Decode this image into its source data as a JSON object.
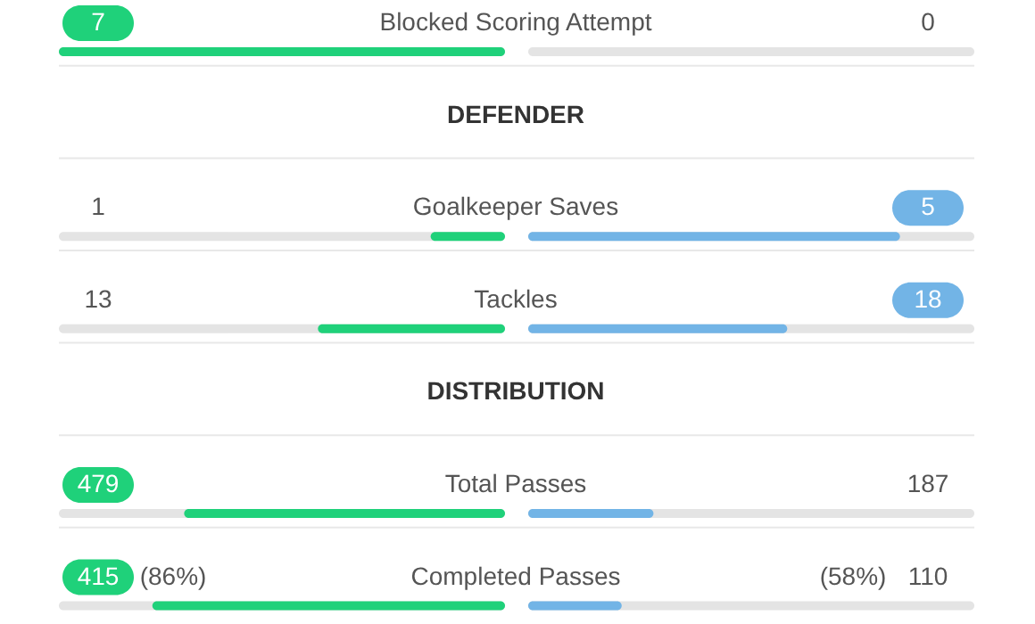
{
  "chart_data": {
    "type": "other",
    "categories": [
      "Blocked Scoring Attempt",
      "Goalkeeper Saves",
      "Tackles",
      "Total Passes",
      "Completed Passes"
    ],
    "series": [
      {
        "color": "#1fd17a",
        "values": [
          7,
          1,
          13,
          479,
          415
        ]
      },
      {
        "color": "#72b4e6",
        "values": [
          0,
          5,
          18,
          187,
          110
        ]
      }
    ],
    "data_labels": true,
    "annotations": [
      {
        "text": "DEFENDER",
        "y": "Goalkeeper Saves"
      },
      {
        "text": "DISTRIBUTION",
        "y": "Total Passes"
      },
      {
        "text": "(86%)",
        "y": "Completed Passes"
      },
      {
        "text": "(58%)",
        "y": "Completed Passes"
      }
    ]
  }
}
